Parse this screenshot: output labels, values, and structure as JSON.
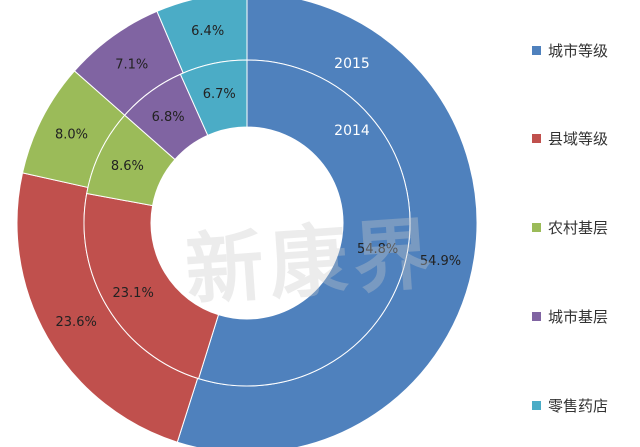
{
  "chart_data": {
    "type": "pie",
    "categories": [
      "城市等级",
      "县域等级",
      "农村基层",
      "城市基层",
      "零售药店"
    ],
    "colors": [
      "#4f81bd",
      "#c0504d",
      "#9bbb59",
      "#8064a2",
      "#4bacc6"
    ],
    "series": [
      {
        "name": "2015",
        "values": [
          54.9,
          23.6,
          8.0,
          7.1,
          6.4
        ],
        "labels": [
          "54.9%",
          "23.6%",
          "8.0%",
          "7.1%",
          "6.4%"
        ]
      },
      {
        "name": "2014",
        "values": [
          54.8,
          23.1,
          8.6,
          6.8,
          6.7
        ],
        "labels": [
          "54.8%",
          "23.1%",
          "8.6%",
          "6.8%",
          "6.7%"
        ]
      }
    ],
    "legend_position": "right"
  },
  "watermark": "新康界"
}
